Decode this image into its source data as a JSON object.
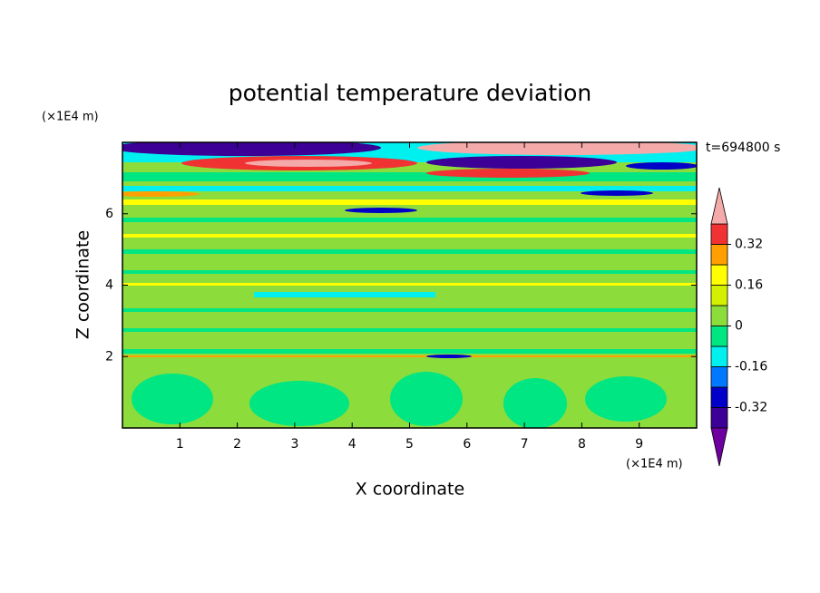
{
  "chart_data": {
    "type": "contour",
    "title": "potential temperature deviation",
    "x_label": "X coordinate",
    "y_label": "Z coordinate",
    "x_unit": "(×1E4 m)",
    "y_unit": "(×1E4 m)",
    "annotation": "t=694800 s",
    "xlim": [
      0,
      10
    ],
    "ylim": [
      0,
      8
    ],
    "xticks": [
      1,
      2,
      3,
      4,
      5,
      6,
      7,
      8,
      9
    ],
    "yticks": [
      2,
      4,
      6
    ],
    "colorbar": {
      "lim": [
        -0.4,
        0.4
      ],
      "ticks": [
        -0.32,
        -0.16,
        0,
        0.16,
        0.32
      ],
      "colors": [
        "#3c0096",
        "#0000c8",
        "#0078ff",
        "#00f0f0",
        "#00e682",
        "#8cdc3c",
        "#d2f000",
        "#ffff00",
        "#ffa000",
        "#f03232"
      ],
      "under_color": "#6e00a0",
      "over_color": "#f5aaaa"
    }
  }
}
